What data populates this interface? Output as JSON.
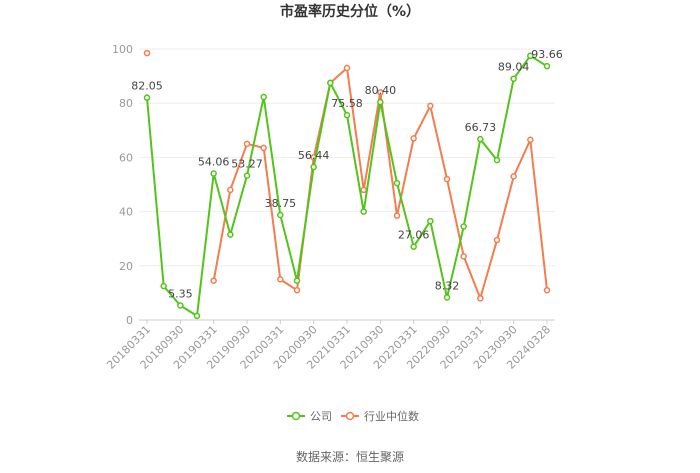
{
  "chart_data": {
    "type": "line",
    "title": "市盈率历史分位（%）",
    "ylim": [
      0,
      100
    ],
    "yticks": [
      0,
      20,
      40,
      60,
      80,
      100
    ],
    "grid": "horizontal",
    "legend_position": "bottom",
    "x_tick_labels": [
      "20180331",
      "20180930",
      "20190331",
      "20190930",
      "20200331",
      "20200930",
      "20210331",
      "20210930",
      "20220331",
      "20220930",
      "20230331",
      "20230930",
      "20240328"
    ],
    "series": [
      {
        "name": "公司",
        "color": "#52c41a",
        "values": [
          82.05,
          12.5,
          5.35,
          1.5,
          54.06,
          31.5,
          53.27,
          82.3,
          38.75,
          14.5,
          56.44,
          87.5,
          75.58,
          40.0,
          80.4,
          50.5,
          27.06,
          36.5,
          8.32,
          34.5,
          66.73,
          59.0,
          89.04,
          97.5,
          93.66
        ],
        "labels": {
          "0": "82.05",
          "2": "5.35",
          "4": "54.06",
          "6": "53.27",
          "8": "38.75",
          "10": "56.44",
          "12": "75.58",
          "14": "80.40",
          "16": "27.06",
          "18": "8.32",
          "20": "66.73",
          "22": "89.04",
          "24": "93.66"
        }
      },
      {
        "name": "行业中位数",
        "color": "#f47c4d",
        "values": [
          98.5,
          null,
          null,
          null,
          14.5,
          48.0,
          65.0,
          63.5,
          15.0,
          11.0,
          60.0,
          87.5,
          93.0,
          48.0,
          84.0,
          38.5,
          67.0,
          79.0,
          52.0,
          23.5,
          8.0,
          29.5,
          53.0,
          66.5,
          11.0
        ]
      }
    ]
  },
  "source": "数据来源：恒生聚源"
}
